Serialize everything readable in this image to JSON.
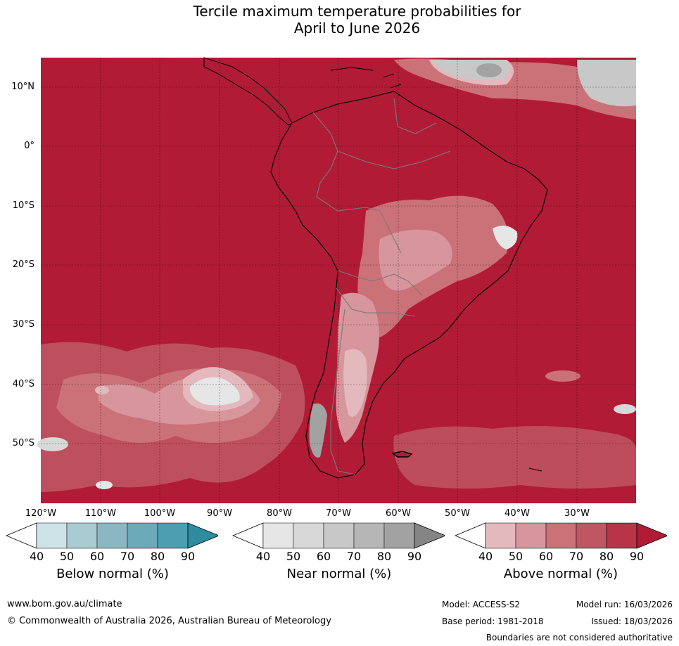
{
  "title": {
    "line1": "Tercile maximum temperature probabilities for",
    "line2": "April to June 2026"
  },
  "map": {
    "lat_labels": [
      "10°N",
      "0°",
      "10°S",
      "20°S",
      "30°S",
      "40°S",
      "50°S"
    ],
    "lon_labels": [
      "120°W",
      "110°W",
      "100°W",
      "90°W",
      "80°W",
      "70°W",
      "60°W",
      "50°W",
      "40°W",
      "30°W"
    ],
    "dominant_category": "Above normal 90%"
  },
  "colorbars": [
    {
      "title": "Below normal (%)",
      "ticks": [
        "40",
        "50",
        "60",
        "70",
        "80",
        "90"
      ],
      "colors": [
        "#ffffff",
        "#cde3e8",
        "#a9cbd2",
        "#8bb7c2",
        "#6aaab9",
        "#4b9fb0",
        "#2e8ca0"
      ]
    },
    {
      "title": "Near normal (%)",
      "ticks": [
        "40",
        "50",
        "60",
        "70",
        "80",
        "90"
      ],
      "colors": [
        "#ffffff",
        "#e6e6e6",
        "#d8d8d8",
        "#c8c8c8",
        "#b6b6b6",
        "#a2a2a2",
        "#858585"
      ]
    },
    {
      "title": "Above normal (%)",
      "ticks": [
        "40",
        "50",
        "60",
        "70",
        "80",
        "90"
      ],
      "colors": [
        "#ffffff",
        "#e3b9bd",
        "#d7969c",
        "#cb7178",
        "#c05563",
        "#b93447",
        "#b11b36"
      ]
    }
  ],
  "footer": {
    "url": "www.bom.gov.au/climate",
    "copyright": "© Commonwealth of Australia 2026, Australian Bureau of Meteorology",
    "model": "Model: ACCESS-S2",
    "model_run": "Model run: 16/03/2026",
    "base_period": "Base period: 1981-2018",
    "issued": "Issued: 18/03/2026",
    "disclaimer": "Boundaries are not considered authoritative"
  }
}
